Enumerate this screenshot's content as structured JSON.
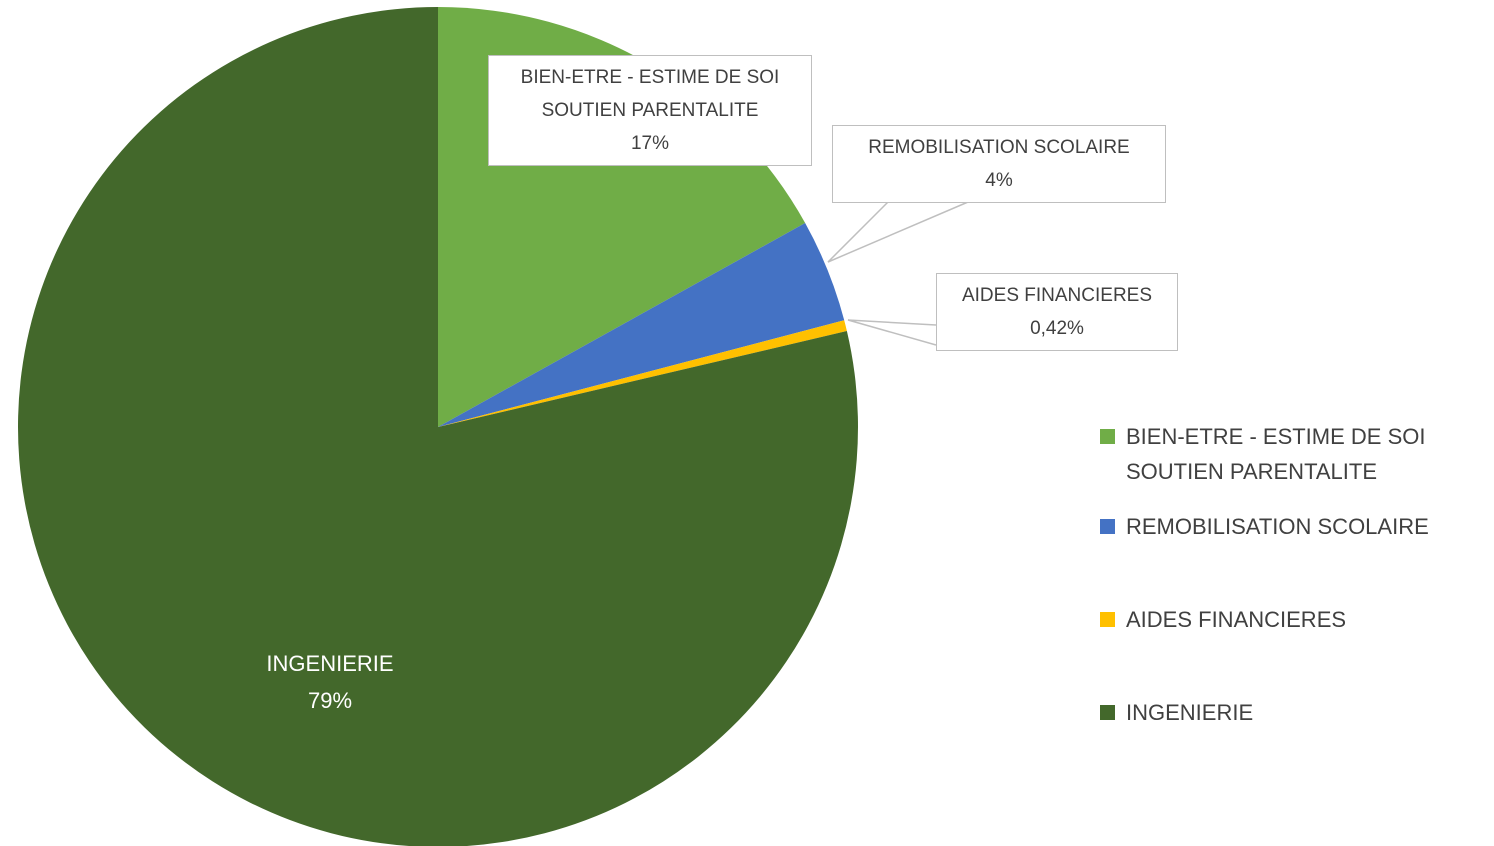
{
  "chart_data": {
    "type": "pie",
    "categories": [
      "BIEN-ETRE - ESTIME DE SOI SOUTIEN PARENTALITE",
      "REMOBILISATION SCOLAIRE",
      "AIDES FINANCIERES",
      "INGENIERIE"
    ],
    "values": [
      17,
      4,
      0.42,
      79
    ],
    "value_labels": [
      "17%",
      "4%",
      "0,42%",
      "79%"
    ],
    "colors": [
      "#70ad47",
      "#4472c4",
      "#ffc000",
      "#43682b"
    ],
    "legend": "right"
  }
}
